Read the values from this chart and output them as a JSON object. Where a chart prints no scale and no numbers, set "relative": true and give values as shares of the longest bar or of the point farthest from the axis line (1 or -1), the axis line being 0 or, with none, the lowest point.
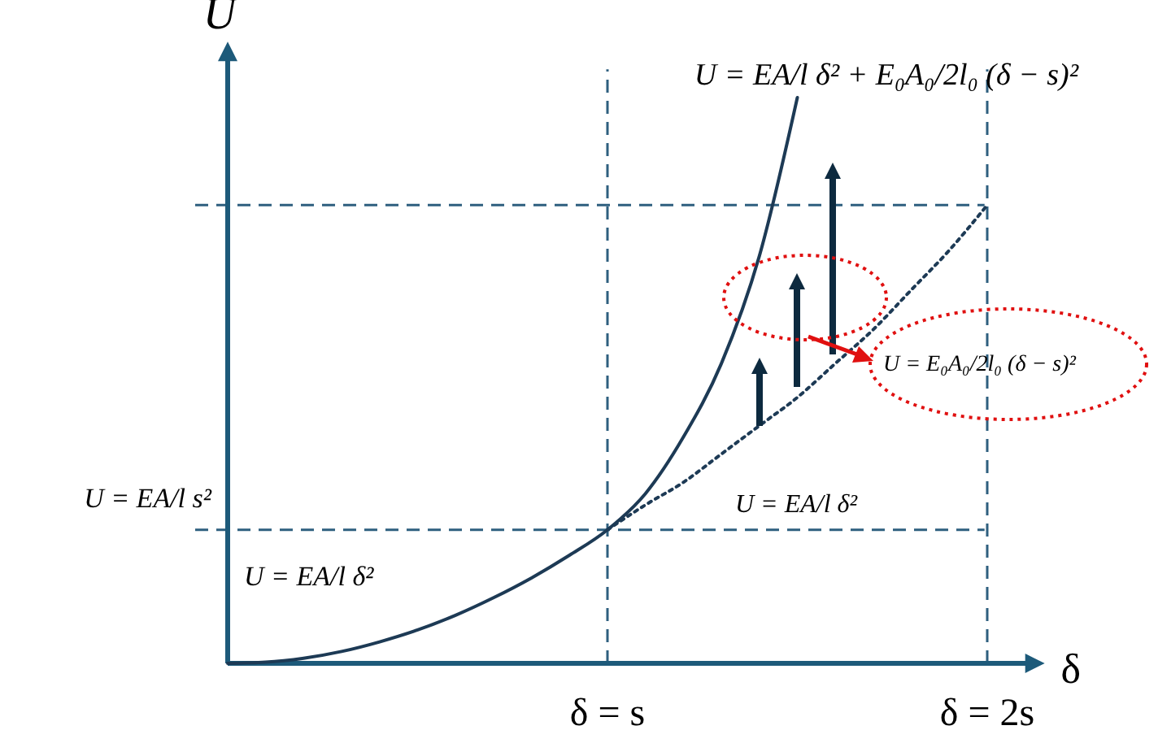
{
  "chart_data": {
    "type": "line",
    "relative": true,
    "xlabel": "δ",
    "ylabel": "U",
    "categories": [
      null,
      null,
      null,
      null,
      null,
      null,
      null,
      null,
      null,
      null,
      "δ = s",
      null,
      null,
      null,
      null,
      null,
      null,
      null,
      null,
      null,
      "δ = 2s",
      null
    ],
    "series": [
      {
        "color": "#1d3a55",
        "line_style": "solid",
        "values": [
          0,
          0.002,
          0.009,
          0.021,
          0.038,
          0.059,
          0.085,
          0.116,
          0.151,
          0.191,
          0.236,
          0.3,
          0.4,
          0.53,
          0.72,
          1,
          null,
          null,
          null,
          null,
          null,
          null
        ]
      },
      {
        "color": "#1d3a55",
        "line_style": "dotted",
        "values": [
          null,
          null,
          null,
          null,
          null,
          null,
          null,
          null,
          null,
          null,
          0.236,
          0.28,
          0.32,
          0.37,
          0.42,
          0.47,
          0.53,
          0.59,
          0.66,
          0.73,
          0.81,
          null
        ]
      }
    ],
    "ref_lines": [
      {
        "axis": "y",
        "value": 0.236,
        "label": "U = EA/l s²",
        "color": "#2e5f7f",
        "line_style": "dashed"
      },
      {
        "axis": "y",
        "value": 0.81,
        "color": "#2e5f7f",
        "line_style": "dashed"
      },
      {
        "axis": "x",
        "value": "δ = s",
        "color": "#2e5f7f",
        "line_style": "dashed"
      },
      {
        "axis": "x",
        "value": "δ = 2s",
        "color": "#2e5f7f",
        "line_style": "dashed"
      }
    ],
    "annotations": [
      "U = EA/l δ² + E₀A₀/2l₀ (δ − s)²",
      "U = EA/l δ²",
      "U = EA/l δ²",
      "U = E₀A₀/2l₀ (δ − s)²"
    ]
  }
}
